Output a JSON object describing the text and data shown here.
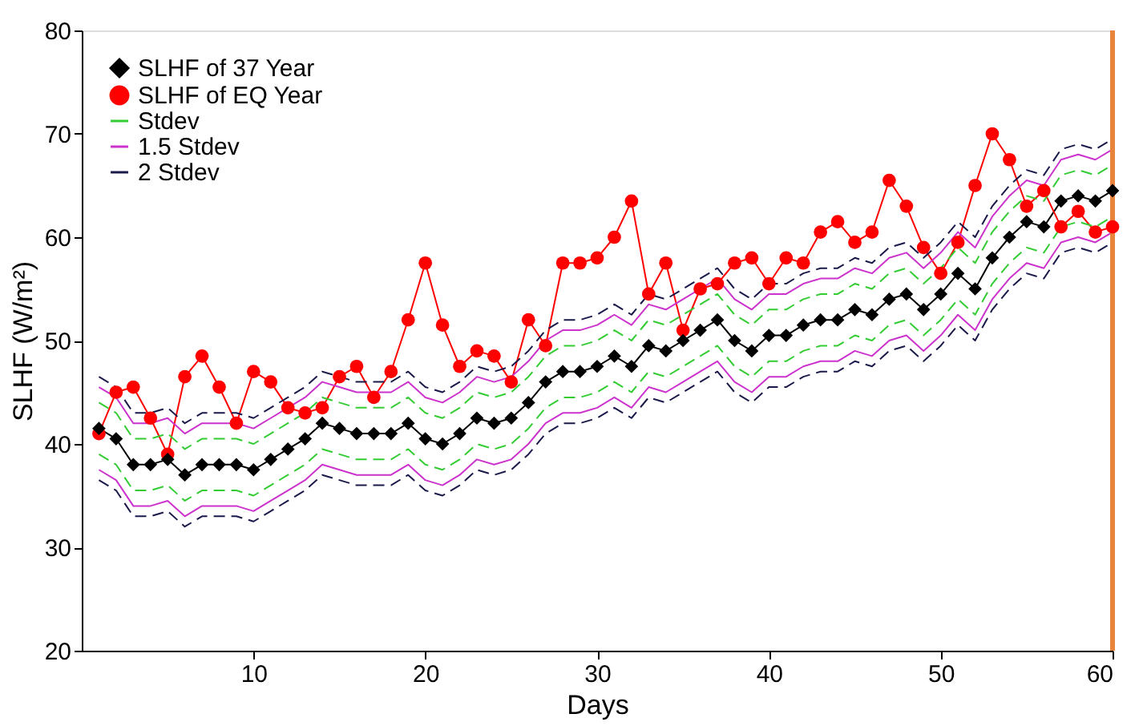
{
  "chart_data": {
    "type": "line",
    "xlabel": "Days",
    "ylabel": "SLHF (W/m²)",
    "x": [
      1,
      2,
      3,
      4,
      5,
      6,
      7,
      8,
      9,
      10,
      11,
      12,
      13,
      14,
      15,
      16,
      17,
      18,
      19,
      20,
      21,
      22,
      23,
      24,
      25,
      26,
      27,
      28,
      29,
      30,
      31,
      32,
      33,
      34,
      35,
      36,
      37,
      38,
      39,
      40,
      41,
      42,
      43,
      44,
      45,
      46,
      47,
      48,
      49,
      50,
      51,
      52,
      53,
      54,
      55,
      56,
      57,
      58,
      59,
      60
    ],
    "xlim": [
      0,
      60
    ],
    "xticks": [
      10,
      20,
      30,
      40,
      50,
      60
    ],
    "ylim": [
      20,
      80
    ],
    "yticks": [
      20,
      30,
      40,
      50,
      60,
      70,
      80
    ],
    "grid": false,
    "legend": "top left",
    "ref_lines": [
      {
        "axis": "x",
        "value": 60,
        "color": "#e8843c"
      }
    ],
    "series": [
      {
        "name": "SLHF of 37 Year",
        "color": "#000000",
        "marker": "diamond",
        "line_style": "solid",
        "values": [
          41.5,
          40.5,
          38,
          38,
          38.5,
          37,
          38,
          38,
          38,
          37.5,
          38.5,
          39.5,
          40.5,
          42,
          41.5,
          41,
          41,
          41,
          42,
          40.5,
          40,
          41,
          42.5,
          42,
          42.5,
          44,
          46,
          47,
          47,
          47.5,
          48.5,
          47.5,
          49.5,
          49,
          50,
          51,
          52,
          50,
          49,
          50.5,
          50.5,
          51.5,
          52,
          52,
          53,
          52.5,
          54,
          54.5,
          53,
          54.5,
          56.5,
          55,
          58,
          60,
          61.5,
          61,
          63.5,
          64,
          63.5,
          64.5
        ]
      },
      {
        "name": "SLHF of EQ Year",
        "color": "#ff0000",
        "marker": "circle",
        "line_style": "solid",
        "values": [
          41,
          45,
          45.5,
          42.5,
          39,
          46.5,
          48.5,
          45.5,
          42,
          47,
          46,
          43.5,
          43,
          43.5,
          46.5,
          47.5,
          44.5,
          47,
          52,
          57.5,
          51.5,
          47.5,
          49,
          48.5,
          46,
          52,
          49.5,
          57.5,
          57.5,
          58,
          60,
          63.5,
          54.5,
          57.5,
          51,
          55,
          55.5,
          57.5,
          58,
          55.5,
          58,
          57.5,
          60.5,
          61.5,
          59.5,
          60.5,
          65.5,
          63,
          59,
          56.5,
          59.5,
          65,
          70,
          67.5,
          63,
          64.5,
          61,
          62.5,
          60.5,
          61
        ]
      },
      {
        "name": "Stdev",
        "color": "#33cc33",
        "marker": "none",
        "line_style": "dashed",
        "values": [
          44,
          43,
          40.5,
          40.5,
          41,
          39.5,
          40.5,
          40.5,
          40.5,
          40,
          41,
          42,
          43,
          44.5,
          44,
          43.5,
          43.5,
          43.5,
          44.5,
          43,
          42.5,
          43.5,
          45,
          44.5,
          45,
          46.5,
          48.5,
          49.5,
          49.5,
          50,
          51,
          50,
          52,
          51.5,
          52.5,
          53.5,
          54.5,
          52.5,
          51.5,
          53,
          53,
          54,
          54.5,
          54.5,
          55.5,
          55,
          56.5,
          57,
          55.5,
          57,
          59,
          57.5,
          60.5,
          62.5,
          64,
          63.5,
          66,
          66.5,
          66,
          67
        ]
      },
      {
        "color": "#33cc33",
        "marker": "none",
        "line_style": "dashed",
        "values": [
          39,
          38,
          35.5,
          35.5,
          36,
          34.5,
          35.5,
          35.5,
          35.5,
          35,
          36,
          37,
          38,
          39.5,
          39,
          38.5,
          38.5,
          38.5,
          39.5,
          38,
          37.5,
          38.5,
          40,
          39.5,
          40,
          41.5,
          43.5,
          44.5,
          44.5,
          45,
          46,
          45,
          47,
          46.5,
          47.5,
          48.5,
          49.5,
          47.5,
          46.5,
          48,
          48,
          49,
          49.5,
          49.5,
          50.5,
          50,
          51.5,
          52,
          50.5,
          52,
          54,
          52.5,
          55.5,
          57.5,
          59,
          58.5,
          61,
          61.5,
          61,
          62
        ]
      },
      {
        "name": "1.5 Stdev",
        "color": "#cc33cc",
        "marker": "none",
        "line_style": "solid",
        "values": [
          45.5,
          44.5,
          42,
          42,
          42.5,
          41,
          42,
          42,
          42,
          41.5,
          42.5,
          43.5,
          44.5,
          46,
          45.5,
          45,
          45,
          45,
          46,
          44.5,
          44,
          45,
          46.5,
          46,
          46.5,
          48,
          50,
          51,
          51,
          51.5,
          52.5,
          51.5,
          53.5,
          53,
          54,
          55,
          56,
          54,
          53,
          54.5,
          54.5,
          55.5,
          56,
          56,
          57,
          56.5,
          58,
          58.5,
          57,
          58.5,
          60.5,
          59,
          62,
          64,
          65.5,
          65,
          67.5,
          68,
          67.5,
          68.5
        ]
      },
      {
        "color": "#cc33cc",
        "marker": "none",
        "line_style": "solid",
        "values": [
          37.5,
          36.5,
          34,
          34,
          34.5,
          33,
          34,
          34,
          34,
          33.5,
          34.5,
          35.5,
          36.5,
          38,
          37.5,
          37,
          37,
          37,
          38,
          36.5,
          36,
          37,
          38.5,
          38,
          38.5,
          40,
          42,
          43,
          43,
          43.5,
          44.5,
          43.5,
          45.5,
          45,
          46,
          47,
          48,
          46,
          45,
          46.5,
          46.5,
          47.5,
          48,
          48,
          49,
          48.5,
          50,
          50.5,
          49,
          50.5,
          52.5,
          51,
          54,
          56,
          57.5,
          57,
          59.5,
          60,
          59.5,
          60.5
        ]
      },
      {
        "name": "2 Stdev",
        "color": "#1a1a4a",
        "marker": "none",
        "line_style": "dashed",
        "values": [
          46.5,
          45.5,
          43,
          43,
          43.5,
          42,
          43,
          43,
          43,
          42.5,
          43.5,
          44.5,
          45.5,
          47,
          46.5,
          46,
          46,
          46,
          47,
          45.5,
          45,
          46,
          47.5,
          47,
          47.5,
          49,
          51,
          52,
          52,
          52.5,
          53.5,
          52.5,
          54.5,
          54,
          55,
          56,
          57,
          55,
          54,
          55.5,
          55.5,
          56.5,
          57,
          57,
          58,
          57.5,
          59,
          59.5,
          58,
          59.5,
          61.5,
          60,
          63,
          65,
          66.5,
          66,
          68.5,
          69,
          68.5,
          69.5
        ]
      },
      {
        "color": "#1a1a4a",
        "marker": "none",
        "line_style": "dashed",
        "values": [
          36.5,
          35.5,
          33,
          33,
          33.5,
          32,
          33,
          33,
          33,
          32.5,
          33.5,
          34.5,
          35.5,
          37,
          36.5,
          36,
          36,
          36,
          37,
          35.5,
          35,
          36,
          37.5,
          37,
          37.5,
          39,
          41,
          42,
          42,
          42.5,
          43.5,
          42.5,
          44.5,
          44,
          45,
          46,
          47,
          45,
          44,
          45.5,
          45.5,
          46.5,
          47,
          47,
          48,
          47.5,
          49,
          49.5,
          48,
          49.5,
          51.5,
          50,
          53,
          55,
          56.5,
          56,
          58.5,
          59,
          58.5,
          59.5
        ]
      }
    ]
  }
}
